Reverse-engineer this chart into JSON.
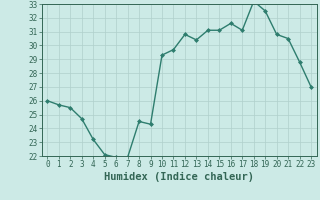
{
  "xlabel": "Humidex (Indice chaleur)",
  "x": [
    0,
    1,
    2,
    3,
    4,
    5,
    6,
    7,
    8,
    9,
    10,
    11,
    12,
    13,
    14,
    15,
    16,
    17,
    18,
    19,
    20,
    21,
    22,
    23
  ],
  "y": [
    26.0,
    25.7,
    25.5,
    24.7,
    23.2,
    22.1,
    21.9,
    21.9,
    24.5,
    24.3,
    29.3,
    29.7,
    30.8,
    30.4,
    31.1,
    31.1,
    31.6,
    31.1,
    33.2,
    32.5,
    30.8,
    30.5,
    28.8,
    27.0
  ],
  "line_color": "#2e7d6e",
  "marker": "D",
  "marker_size": 2.0,
  "bg_color": "#cceae6",
  "grid_color": "#b0d0cc",
  "ylim": [
    22,
    33
  ],
  "yticks": [
    22,
    23,
    24,
    25,
    26,
    27,
    28,
    29,
    30,
    31,
    32,
    33
  ],
  "xticks": [
    0,
    1,
    2,
    3,
    4,
    5,
    6,
    7,
    8,
    9,
    10,
    11,
    12,
    13,
    14,
    15,
    16,
    17,
    18,
    19,
    20,
    21,
    22,
    23
  ],
  "axis_color": "#336655",
  "tick_fontsize": 5.5,
  "xlabel_fontsize": 7.5,
  "linewidth": 1.0
}
